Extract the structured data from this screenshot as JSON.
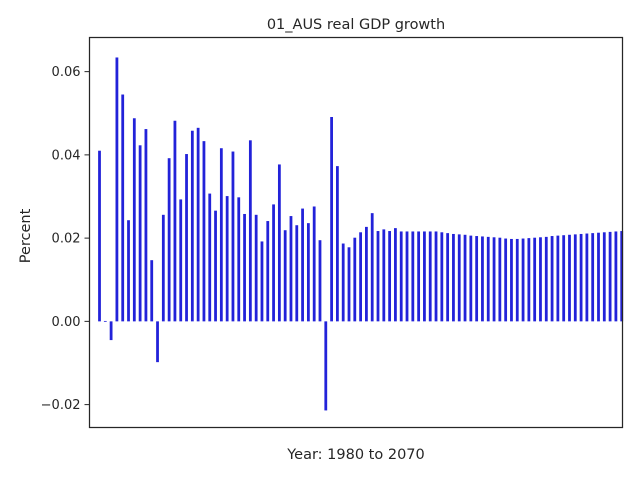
{
  "chart_data": {
    "type": "bar",
    "title": "01_AUS real GDP growth",
    "xlabel": "Year: 1980 to 2070",
    "ylabel": "Percent",
    "x": [
      1980,
      1981,
      1982,
      1983,
      1984,
      1985,
      1986,
      1987,
      1988,
      1989,
      1990,
      1991,
      1992,
      1993,
      1994,
      1995,
      1996,
      1997,
      1998,
      1999,
      2000,
      2001,
      2002,
      2003,
      2004,
      2005,
      2006,
      2007,
      2008,
      2009,
      2010,
      2011,
      2012,
      2013,
      2014,
      2015,
      2016,
      2017,
      2018,
      2019,
      2020,
      2021,
      2022,
      2023,
      2024,
      2025,
      2026,
      2027,
      2028,
      2029,
      2030,
      2031,
      2032,
      2033,
      2034,
      2035,
      2036,
      2037,
      2038,
      2039,
      2040,
      2041,
      2042,
      2043,
      2044,
      2045,
      2046,
      2047,
      2048,
      2049,
      2050,
      2051,
      2052,
      2053,
      2054,
      2055,
      2056,
      2057,
      2058,
      2059,
      2060,
      2061,
      2062,
      2063,
      2064,
      2065,
      2066,
      2067,
      2068,
      2069,
      2070
    ],
    "values": [
      0.041,
      0.0,
      -0.0045,
      0.0634,
      0.0545,
      0.0243,
      0.0488,
      0.0423,
      0.0462,
      0.0147,
      -0.0098,
      0.0256,
      0.0392,
      0.0482,
      0.0293,
      0.0402,
      0.0458,
      0.0465,
      0.0433,
      0.0307,
      0.0266,
      0.0416,
      0.0301,
      0.0408,
      0.0298,
      0.0258,
      0.0435,
      0.0256,
      0.0192,
      0.0241,
      0.0281,
      0.0377,
      0.0219,
      0.0253,
      0.0231,
      0.0271,
      0.0236,
      0.0276,
      0.0195,
      -0.0214,
      0.0491,
      0.0373,
      0.0187,
      0.0178,
      0.0201,
      0.0214,
      0.0227,
      0.026,
      0.0217,
      0.0221,
      0.0217,
      0.0224,
      0.0216,
      0.0216,
      0.0216,
      0.0216,
      0.0216,
      0.0216,
      0.0216,
      0.0214,
      0.0212,
      0.021,
      0.0209,
      0.0208,
      0.0206,
      0.0205,
      0.0204,
      0.0203,
      0.0202,
      0.0201,
      0.0199,
      0.0198,
      0.0198,
      0.0199,
      0.02,
      0.0201,
      0.0202,
      0.0203,
      0.0205,
      0.0206,
      0.0207,
      0.0208,
      0.0209,
      0.021,
      0.0211,
      0.0212,
      0.0213,
      0.0214,
      0.0215,
      0.0216,
      0.0217
    ],
    "ylim": [
      -0.0255,
      0.0682
    ],
    "yticks": [
      -0.02,
      0.0,
      0.02,
      0.04,
      0.06
    ],
    "ytick_labels": [
      "−0.02",
      "0.00",
      "0.02",
      "0.04",
      "0.06"
    ],
    "xticks": [],
    "grid": false,
    "legend": "none",
    "colors": {
      "bar": "#2222d9",
      "axes": "#262626",
      "background": "#ffffff"
    }
  }
}
